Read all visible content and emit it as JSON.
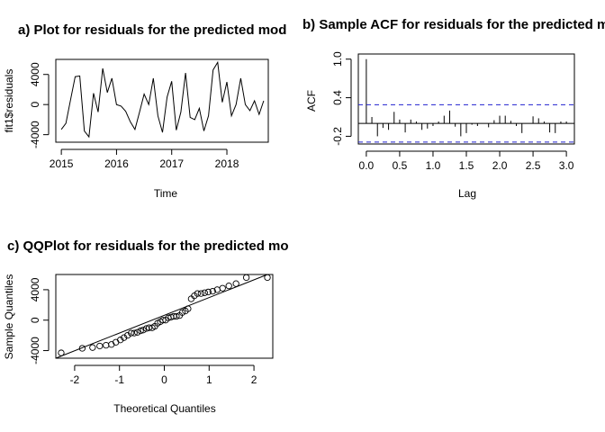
{
  "chart_data": [
    {
      "id": "a",
      "type": "line",
      "title": "a) Plot for residuals for the predicted mod",
      "xlabel": "Time",
      "ylabel": "fit1$residuals",
      "xlim": [
        2014.9,
        2018.75
      ],
      "ylim": [
        -5000,
        6000
      ],
      "xticks": [
        2015,
        2016,
        2017,
        2018
      ],
      "xtick_labels": [
        "2015",
        "2016",
        "2017",
        "2018"
      ],
      "yticks": [
        -4000,
        0,
        4000
      ],
      "ytick_labels": [
        "-4000",
        "0",
        "4000"
      ],
      "series": [
        {
          "x": [
            2015.0,
            2015.0833,
            2015.1667,
            2015.25,
            2015.3333,
            2015.4167,
            2015.5,
            2015.5833,
            2015.6667,
            2015.75,
            2015.8333,
            2015.9167,
            2016.0,
            2016.0833,
            2016.1667,
            2016.25,
            2016.3333,
            2016.4167,
            2016.5,
            2016.5833,
            2016.6667,
            2016.75,
            2016.8333,
            2016.9167,
            2017.0,
            2017.0833,
            2017.1667,
            2017.25,
            2017.3333,
            2017.4167,
            2017.5,
            2017.5833,
            2017.6667,
            2017.75,
            2017.8333,
            2017.9167,
            2018.0,
            2018.0833,
            2018.1667,
            2018.25,
            2018.3333,
            2018.4167,
            2018.5,
            2018.5833,
            2018.6667
          ],
          "y": [
            -3300,
            -2500,
            600,
            3700,
            3800,
            -3500,
            -4300,
            1500,
            -1000,
            4800,
            1600,
            3500,
            0,
            -200,
            -900,
            -2300,
            -3300,
            -1000,
            1400,
            0,
            3500,
            -1500,
            -3700,
            1000,
            3100,
            -3400,
            -1000,
            4200,
            -1700,
            -2000,
            -500,
            -3500,
            -1500,
            4600,
            5600,
            300,
            3000,
            -1500,
            0,
            3500,
            0,
            -800,
            500,
            -1300,
            500
          ]
        }
      ]
    },
    {
      "id": "b",
      "type": "bar",
      "title": "b) Sample ACF for residuals for the predicted mo",
      "xlabel": "Lag",
      "ylabel": "ACF",
      "xlim": [
        -0.12,
        3.12
      ],
      "ylim": [
        -0.32,
        1.08
      ],
      "xticks": [
        0,
        0.5,
        1,
        1.5,
        2,
        2.5,
        3
      ],
      "xtick_labels": [
        "0.0",
        "0.5",
        "1.0",
        "1.5",
        "2.0",
        "2.5",
        "3.0"
      ],
      "yticks": [
        -0.2,
        0.4,
        1
      ],
      "ytick_labels": [
        "-0.2",
        "0.4",
        "1.0"
      ],
      "conf_bound": 0.29,
      "lags": [
        0,
        0.0833,
        0.1667,
        0.25,
        0.3333,
        0.4167,
        0.5,
        0.5833,
        0.6667,
        0.75,
        0.8333,
        0.9167,
        1.0,
        1.0833,
        1.1667,
        1.25,
        1.3333,
        1.4167,
        1.5,
        1.5833,
        1.6667,
        1.75,
        1.8333,
        1.9167,
        2.0,
        2.0833,
        2.1667,
        2.25,
        2.3333,
        2.4167,
        2.5,
        2.5833,
        2.6667,
        2.75,
        2.8333,
        2.9167,
        3.0
      ],
      "values": [
        1.0,
        0.1,
        -0.2,
        -0.07,
        -0.1,
        0.18,
        0.06,
        -0.14,
        0.06,
        0.03,
        -0.1,
        -0.08,
        -0.04,
        0.03,
        0.12,
        0.2,
        -0.05,
        -0.2,
        -0.15,
        -0.02,
        -0.04,
        0.0,
        -0.06,
        0.05,
        0.12,
        0.12,
        0.04,
        -0.04,
        -0.15,
        0.0,
        0.11,
        0.08,
        0.03,
        -0.14,
        -0.15,
        0.03,
        0.03
      ]
    },
    {
      "id": "c",
      "type": "scatter",
      "title": "c) QQPlot for residuals for the predicted mo",
      "xlabel": "Theoretical Quantiles",
      "ylabel": "Sample Quantiles",
      "xlim": [
        -2.42,
        2.42
      ],
      "ylim": [
        -5000,
        6000
      ],
      "xticks": [
        -2,
        -1,
        0,
        1,
        2
      ],
      "xtick_labels": [
        "-2",
        "-1",
        "0",
        "1",
        "2"
      ],
      "yticks": [
        -4000,
        0,
        4000
      ],
      "ytick_labels": [
        "-4000",
        "0",
        "4000"
      ],
      "reference_line": {
        "x": [
          -2.42,
          2.3
        ],
        "y": [
          -5000,
          6000
        ]
      },
      "points": {
        "x": [
          -2.3,
          -1.83,
          -1.6,
          -1.44,
          -1.3,
          -1.18,
          -1.08,
          -0.98,
          -0.9,
          -0.82,
          -0.74,
          -0.67,
          -0.6,
          -0.53,
          -0.47,
          -0.4,
          -0.34,
          -0.27,
          -0.21,
          -0.15,
          -0.09,
          -0.03,
          0.03,
          0.09,
          0.15,
          0.21,
          0.27,
          0.34,
          0.4,
          0.47,
          0.53,
          0.6,
          0.67,
          0.74,
          0.82,
          0.9,
          0.98,
          1.08,
          1.18,
          1.3,
          1.44,
          1.6,
          1.83,
          2.3
        ],
        "y": [
          -4300,
          -3700,
          -3600,
          -3400,
          -3300,
          -3200,
          -2900,
          -2600,
          -2300,
          -2000,
          -1700,
          -1700,
          -1600,
          -1400,
          -1300,
          -1100,
          -1000,
          -1000,
          -800,
          -400,
          -200,
          0,
          0,
          300,
          400,
          500,
          500,
          600,
          1000,
          1200,
          1500,
          2800,
          3200,
          3500,
          3500,
          3600,
          3700,
          3800,
          4000,
          4200,
          4500,
          4800,
          5600,
          5600
        ]
      }
    }
  ]
}
